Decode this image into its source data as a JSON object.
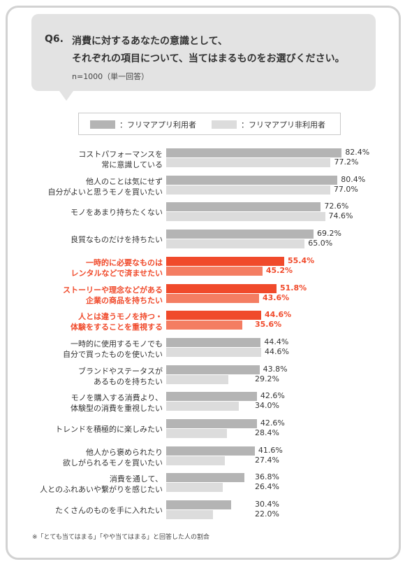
{
  "question": {
    "number": "Q6.",
    "line1": "消費に対するあなたの意識として、",
    "line2": "それぞれの項目について、当てはまるものをお選びください。",
    "sample": "n=1000（単一回答）"
  },
  "colors": {
    "user_gray": "#b4b4b4",
    "nonuser_gray": "#dcdcdc",
    "user_highlight": "#f04a2b",
    "nonuser_highlight": "#f47d62",
    "highlight_text": "#f04a2b"
  },
  "chart_data": {
    "type": "bar",
    "orientation": "horizontal",
    "legend": [
      {
        "label": "：フリマアプリ利用者",
        "color": "#b4b4b4"
      },
      {
        "label": "：フリマアプリ非利用者",
        "color": "#dcdcdc"
      }
    ],
    "series": [
      {
        "name": "：フリマアプリ利用者"
      },
      {
        "name": "：フリマアプリ非利用者"
      }
    ],
    "xlim": [
      0,
      100
    ],
    "categories": [
      {
        "line1": "コストパフォーマンスを",
        "line2": "常に意識している",
        "v1": 82.4,
        "v2": 77.2,
        "t1": "82.4%",
        "t2": "77.2%",
        "highlight": false
      },
      {
        "line1": "他人のことは気にせず",
        "line2": "自分がよいと思うモノを買いたい",
        "v1": 80.4,
        "v2": 77.0,
        "t1": "80.4%",
        "t2": "77.0%",
        "highlight": false
      },
      {
        "line1": "モノをあまり持ちたくない",
        "line2": "",
        "v1": 72.6,
        "v2": 74.6,
        "t1": "72.6%",
        "t2": "74.6%",
        "highlight": false
      },
      {
        "line1": "良質なものだけを持ちたい",
        "line2": "",
        "v1": 69.2,
        "v2": 65.0,
        "t1": "69.2%",
        "t2": "65.0%",
        "highlight": false
      },
      {
        "line1": "一時的に必要なものは",
        "line2": "レンタルなどで済ませたい",
        "v1": 55.4,
        "v2": 45.2,
        "t1": "55.4%",
        "t2": "45.2%",
        "highlight": true
      },
      {
        "line1": "ストーリーや理念などがある",
        "line2": "企業の商品を持ちたい",
        "v1": 51.8,
        "v2": 43.6,
        "t1": "51.8%",
        "t2": "43.6%",
        "highlight": true
      },
      {
        "line1": "人とは違うモノを持つ・",
        "line2": "体験をすることを重視する",
        "v1": 44.6,
        "v2": 35.6,
        "t1": "44.6%",
        "t2": "35.6%",
        "highlight": true
      },
      {
        "line1": "一時的に使用するモノでも",
        "line2": "自分で買ったものを使いたい",
        "v1": 44.4,
        "v2": 44.6,
        "t1": "44.4%",
        "t2": "44.6%",
        "highlight": false
      },
      {
        "line1": "ブランドやステータスが",
        "line2": "あるものを持ちたい",
        "v1": 43.8,
        "v2": 29.2,
        "t1": "43.8%",
        "t2": "29.2%",
        "highlight": false
      },
      {
        "line1": "モノを購入する消費より、",
        "line2": "体験型の消費を重視したい",
        "v1": 42.6,
        "v2": 34.0,
        "t1": "42.6%",
        "t2": "34.0%",
        "highlight": false
      },
      {
        "line1": "トレンドを積極的に楽しみたい",
        "line2": "",
        "v1": 42.6,
        "v2": 28.4,
        "t1": "42.6%",
        "t2": "28.4%",
        "highlight": false
      },
      {
        "line1": "他人から褒められたり",
        "line2": "欲しがられるモノを買いたい",
        "v1": 41.6,
        "v2": 27.4,
        "t1": "41.6%",
        "t2": "27.4%",
        "highlight": false
      },
      {
        "line1": "消費を通して、",
        "line2": "人とのふれあいや繋がりを感じたい",
        "v1": 36.8,
        "v2": 26.4,
        "t1": "36.8%",
        "t2": "26.4%",
        "highlight": false
      },
      {
        "line1": "たくさんのものを手に入れたい",
        "line2": "",
        "v1": 30.4,
        "v2": 22.0,
        "t1": "30.4%",
        "t2": "22.0%",
        "highlight": false
      }
    ]
  },
  "footnote": "※「とても当てはまる」「やや当てはまる」と回答した人の割合"
}
